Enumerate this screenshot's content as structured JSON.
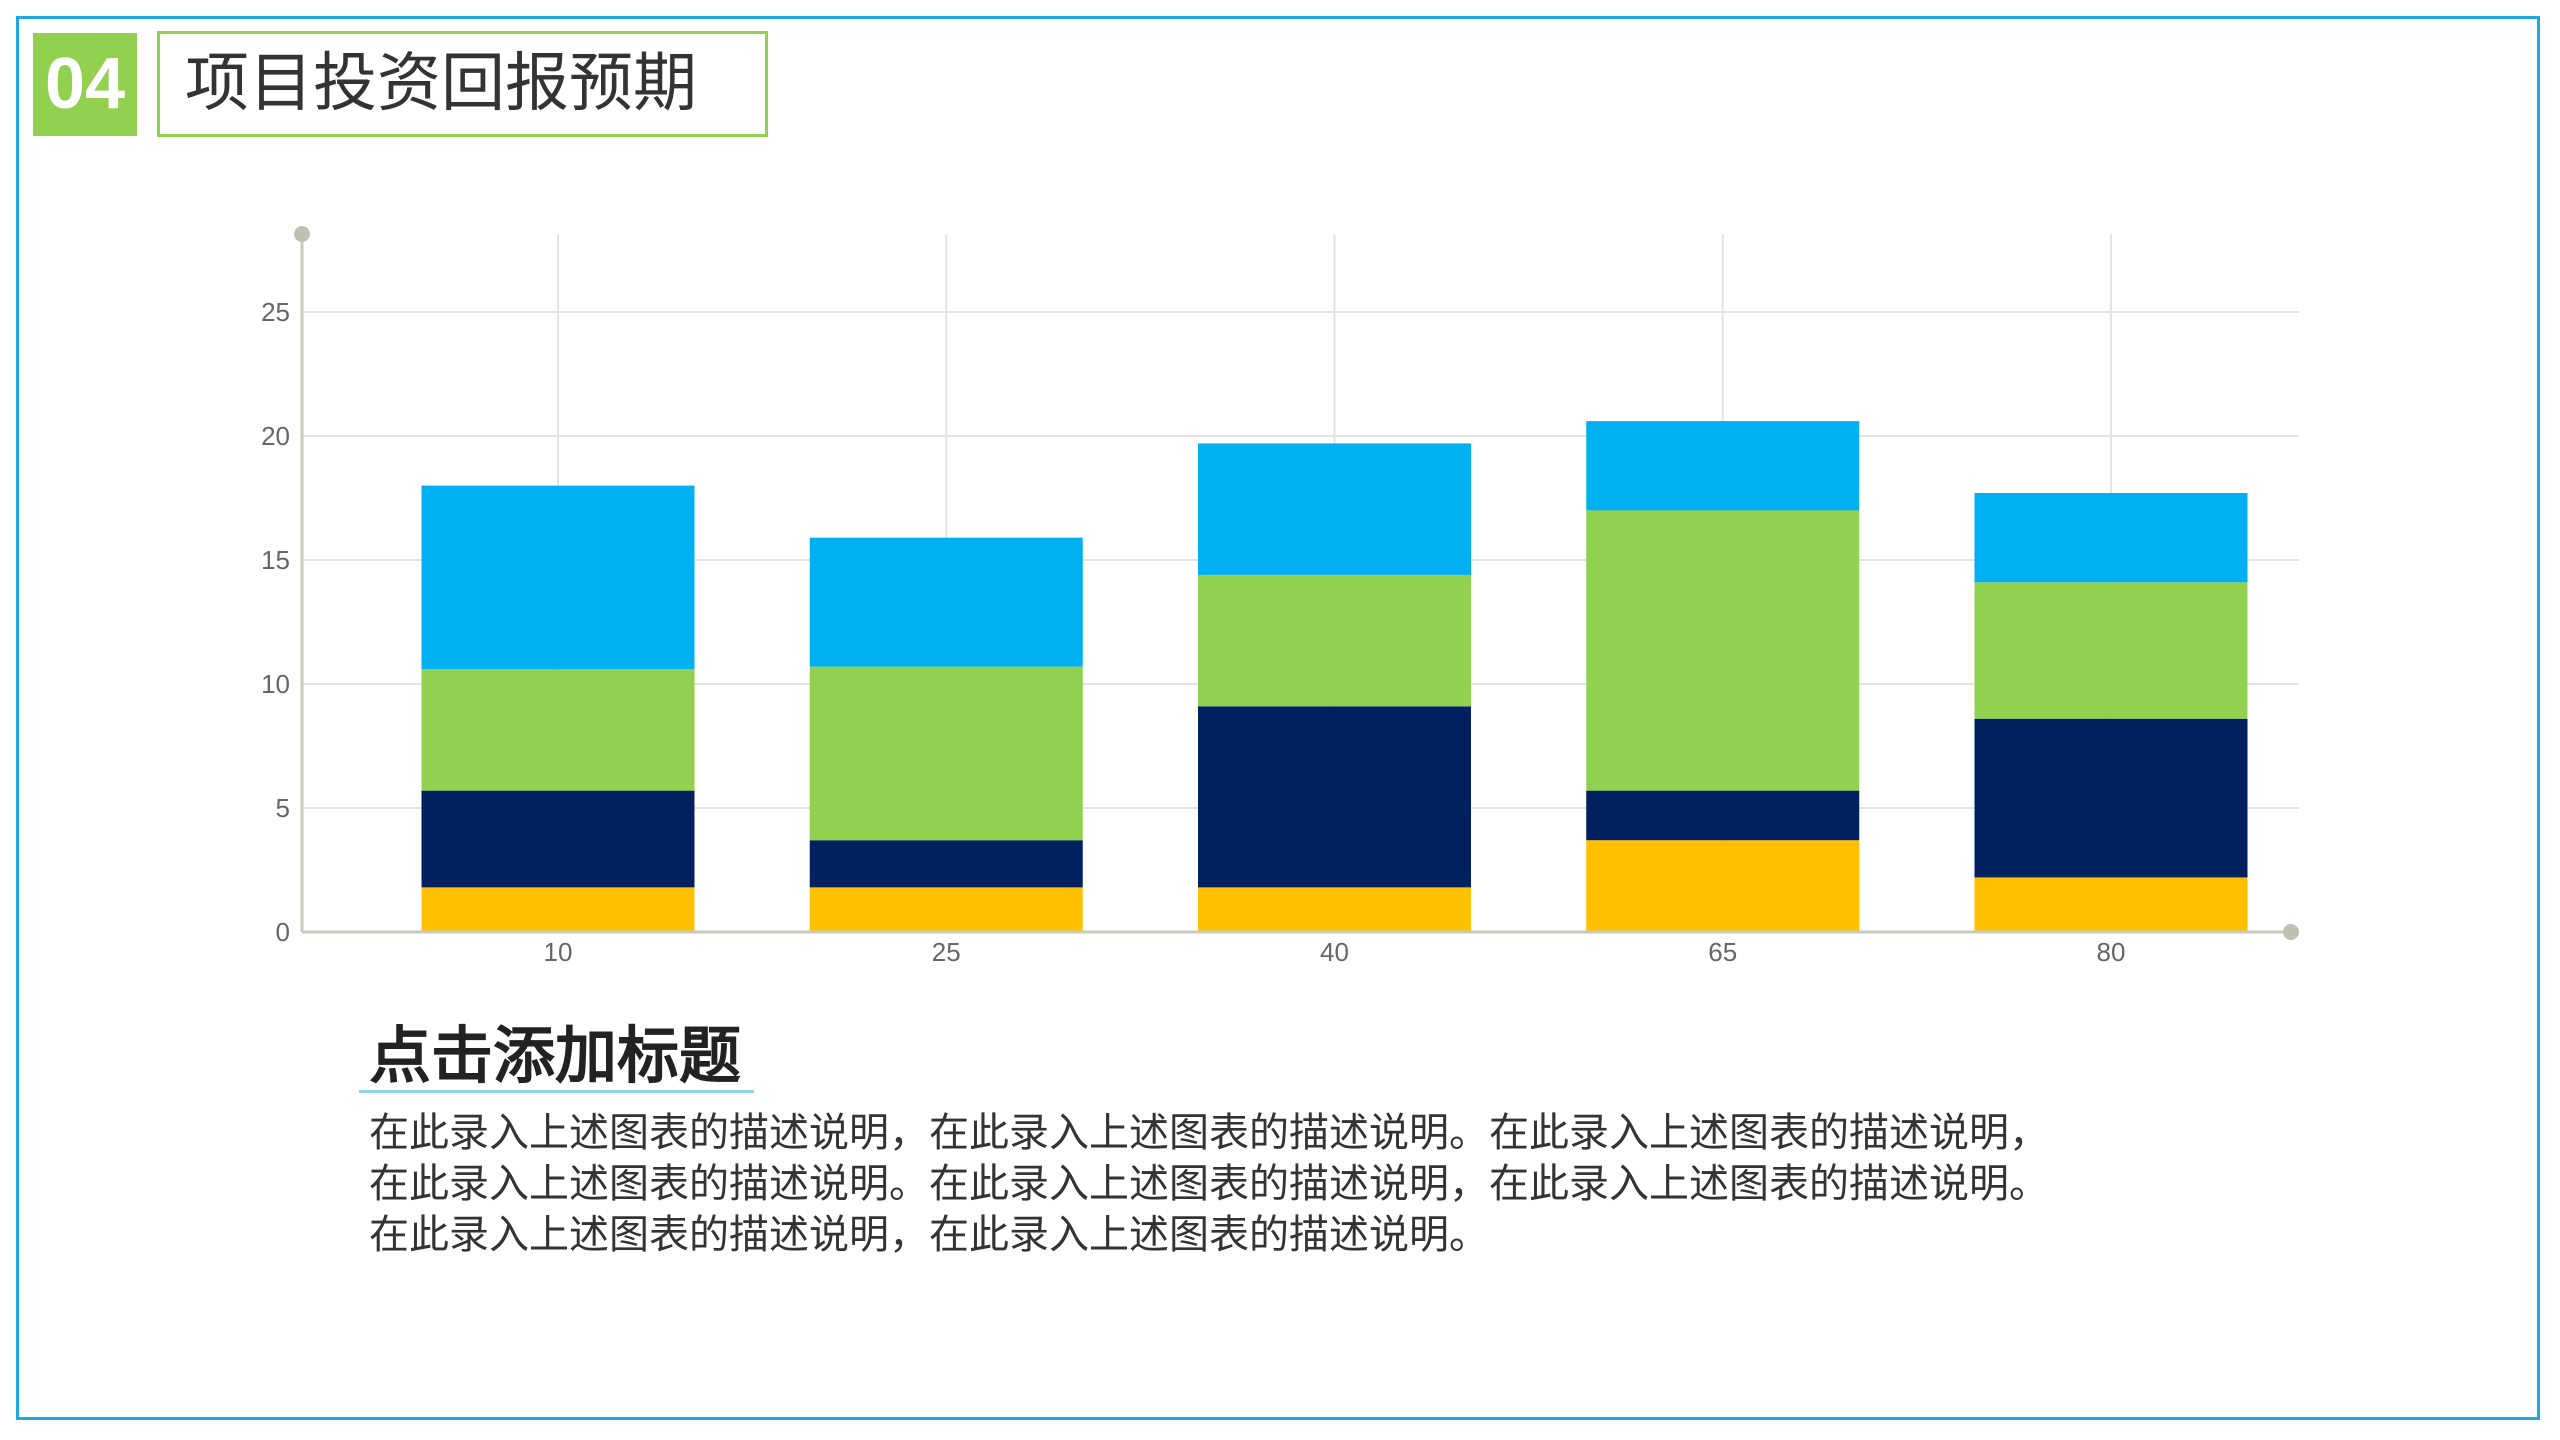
{
  "header": {
    "badge": "04",
    "title": "项目投资回报预期"
  },
  "chart_data": {
    "type": "bar",
    "stacked": true,
    "categories": [
      "10",
      "25",
      "40",
      "65",
      "80"
    ],
    "series": [
      {
        "values": [
          1.8,
          1.8,
          1.8,
          3.7,
          2.2
        ],
        "color": "#ffc000"
      },
      {
        "values": [
          3.9,
          1.9,
          7.3,
          2.0,
          6.4
        ],
        "color": "#002060"
      },
      {
        "values": [
          4.9,
          7.0,
          5.3,
          11.3,
          5.5
        ],
        "color": "#92d050"
      },
      {
        "values": [
          7.4,
          5.2,
          5.3,
          3.6,
          3.6
        ],
        "color": "#00b0f0"
      }
    ],
    "yticks": [
      "0",
      "5",
      "10",
      "15",
      "20",
      "25"
    ],
    "ylim": [
      0,
      28
    ],
    "grid": true,
    "title": "",
    "xlabel": "",
    "ylabel": ""
  },
  "section": {
    "heading": "点击添加标题",
    "lines": [
      "在此录入上述图表的描述说明，在此录入上述图表的描述说明。在此录入上述图表的描述说明，",
      "在此录入上述图表的描述说明。在此录入上述图表的描述说明，在此录入上述图表的描述说明。",
      "在此录入上述图表的描述说明，在此录入上述图表的描述说明。"
    ]
  }
}
